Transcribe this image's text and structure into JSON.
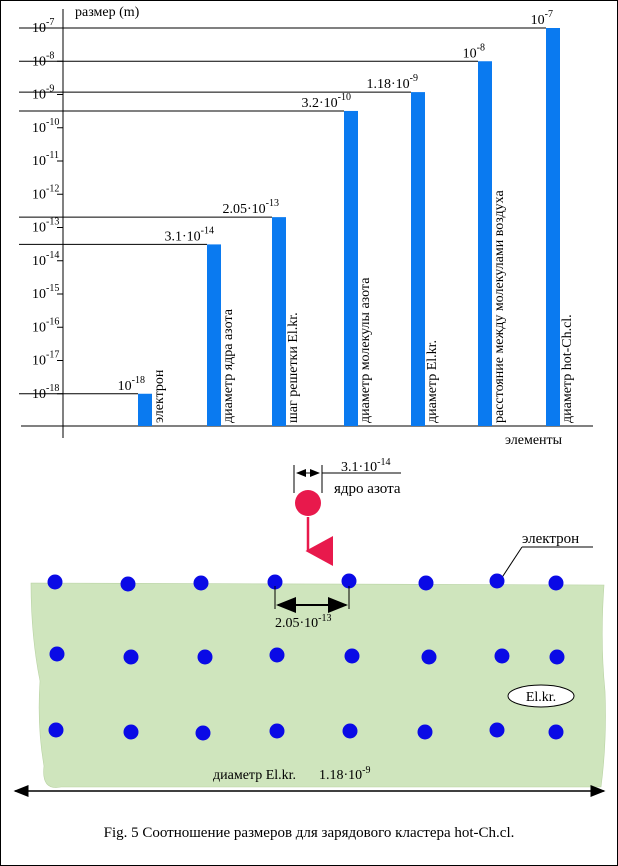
{
  "chart_data": {
    "type": "bar",
    "title": "",
    "ylabel": "размер (m)",
    "xlabel": "элементы",
    "yscale": "log",
    "ylim": [
      1e-19,
      1e-07
    ],
    "yticks": [
      {
        "exp": -7,
        "label": "10",
        "sup": "-7"
      },
      {
        "exp": -8,
        "label": "10",
        "sup": "-8"
      },
      {
        "exp": -9,
        "label": "10",
        "sup": "-9"
      },
      {
        "exp": -10,
        "label": "10",
        "sup": "-10"
      },
      {
        "exp": -11,
        "label": "10",
        "sup": "-11"
      },
      {
        "exp": -12,
        "label": "10",
        "sup": "-12"
      },
      {
        "exp": -13,
        "label": "10",
        "sup": "-13"
      },
      {
        "exp": -14,
        "label": "10",
        "sup": "-14"
      },
      {
        "exp": -15,
        "label": "10",
        "sup": "-15"
      },
      {
        "exp": -16,
        "label": "10",
        "sup": "-16"
      },
      {
        "exp": -17,
        "label": "10",
        "sup": "-17"
      },
      {
        "exp": -18,
        "label": "10",
        "sup": "-18"
      }
    ],
    "categories": [
      "электрон",
      "диаметр ядра азота",
      "шаг решетки El.kr.",
      "диаметр молекулы азота",
      "диаметр El.kr.",
      "расстояние между молекулами воздуха",
      "диаметр hot-Ch.cl."
    ],
    "values": [
      1e-18,
      3.1e-14,
      2.05e-13,
      3.2e-10,
      1.18e-09,
      1e-08,
      1e-07
    ],
    "value_labels": [
      {
        "base": "10",
        "sup": "-18"
      },
      {
        "base": "3.1·10",
        "sup": "-14"
      },
      {
        "base": "2.05·10",
        "sup": "-13"
      },
      {
        "base": "3.2·10",
        "sup": "-10"
      },
      {
        "base": "1.18·10",
        "sup": "-9"
      },
      {
        "base": "10",
        "sup": "-8"
      },
      {
        "base": "10",
        "sup": "-7"
      }
    ],
    "bar_color": "#0a7af0",
    "grid": false
  },
  "diagram": {
    "nucleus_size": {
      "base": "3.1·10",
      "sup": "-14"
    },
    "nucleus_label": "ядро азота",
    "electron_label": "электрон",
    "lattice_step": {
      "base": "2.05·10",
      "sup": "-13"
    },
    "cluster_label": "El.kr.",
    "diameter_label": "диаметр El.kr.",
    "diameter_value": {
      "base": "1.18·10",
      "sup": "-9"
    },
    "nucleus_color": "#e8194c",
    "electron_color": "#0a0ae6",
    "cluster_fill": "#cfe5bd"
  },
  "caption": "Fig. 5  Соотношение размеров для зарядового кластера hot-Ch.cl."
}
